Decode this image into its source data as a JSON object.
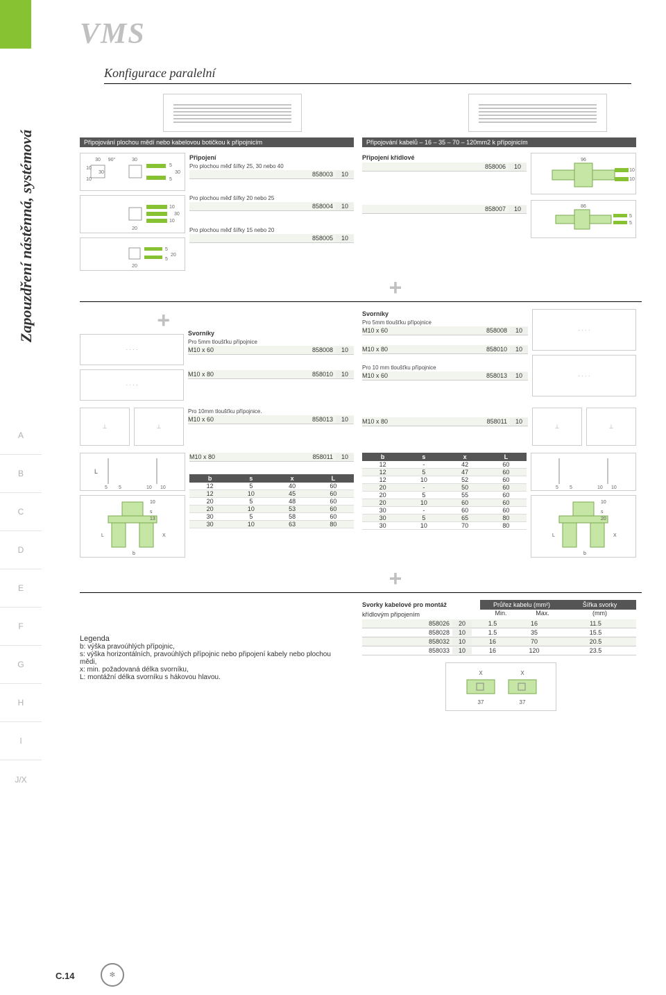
{
  "brand": {
    "title": "VMS",
    "subtitle": "Konfigurace paralelní"
  },
  "side_label": "Zapouzdření nástěnná, systémová",
  "side_tabs": [
    "A",
    "B",
    "C",
    "D",
    "E",
    "F",
    "G",
    "H",
    "I",
    "J/X"
  ],
  "page_number": "C.14",
  "colors": {
    "accent": "#86c232",
    "header_bg": "#555555",
    "tint": "#f2f5ed"
  },
  "left": {
    "banner": "Připojování plochou mědí nebo kabelovou botičkou k přípojnicím",
    "group_title": "Připojení",
    "blocks": [
      {
        "sub": "Pro plochou měď šířky 25, 30 nebo 40",
        "code": "858003",
        "qty": "10"
      },
      {
        "sub": "Pro plochou měď šířky 20 nebo 25",
        "code": "858004",
        "qty": "10"
      },
      {
        "sub": "Pro plochou měď šířky 15 nebo 20",
        "code": "858005",
        "qty": "10"
      }
    ],
    "schematic_labels": {
      "a": [
        "30",
        "90°",
        "30",
        "10",
        "30",
        "10",
        "5",
        "30",
        "5"
      ],
      "b": [
        "10",
        "30",
        "10",
        "20"
      ],
      "c": [
        "5",
        "20",
        "5",
        "20"
      ]
    }
  },
  "right": {
    "banner": "Připojování kabelů – 16 – 35 – 70 – 120mm2 k přípojnicím",
    "group_title": "Připojení křídlové",
    "rows": [
      {
        "code": "858006",
        "qty": "10"
      },
      {
        "code": "858007",
        "qty": "10"
      }
    ],
    "dim_labels": {
      "a": [
        "96",
        "10",
        "10"
      ],
      "b": [
        "86",
        "5",
        "5"
      ]
    }
  },
  "svorniky_left": {
    "title": "Svorníky",
    "sub": "Pro 5mm tloušťku přípojnice",
    "rows1": [
      {
        "name": "M10 x 60",
        "code": "858008",
        "qty": "10"
      }
    ],
    "rows2": [
      {
        "name": "M10 x 80",
        "code": "858010",
        "qty": "10"
      }
    ],
    "sub2": "Pro 10mm tloušťku přípojnice.",
    "rows3": [
      {
        "name": "M10 x 60",
        "code": "858013",
        "qty": "10"
      }
    ],
    "rows4": [
      {
        "name": "M10 x 80",
        "code": "858011",
        "qty": "10"
      }
    ]
  },
  "svorniky_right": {
    "title": "Svorníky",
    "sub": "Pro 5mm tloušťku přípojnice",
    "rows1": [
      {
        "name": "M10 x 60",
        "code": "858008",
        "qty": "10"
      }
    ],
    "rows2": [
      {
        "name": "M10 x 80",
        "code": "858010",
        "qty": "10"
      }
    ],
    "sub2": "Pro 10 mm tloušťku přípojnice",
    "rows3": [
      {
        "name": "M10 x 60",
        "code": "858013",
        "qty": "10"
      }
    ],
    "rows4": [
      {
        "name": "M10 x 80",
        "code": "858011",
        "qty": "10"
      }
    ]
  },
  "bsxl_left": {
    "columns": [
      "b",
      "s",
      "x",
      "L"
    ],
    "rows": [
      [
        "12",
        "5",
        "40",
        "60"
      ],
      [
        "12",
        "10",
        "45",
        "60"
      ],
      [
        "20",
        "5",
        "48",
        "60"
      ],
      [
        "20",
        "10",
        "53",
        "60"
      ],
      [
        "30",
        "5",
        "58",
        "60"
      ],
      [
        "30",
        "10",
        "63",
        "80"
      ]
    ]
  },
  "bsxl_right": {
    "columns": [
      "b",
      "s",
      "x",
      "L"
    ],
    "rows": [
      [
        "12",
        "-",
        "42",
        "60"
      ],
      [
        "12",
        "5",
        "47",
        "60"
      ],
      [
        "12",
        "10",
        "52",
        "60"
      ],
      [
        "20",
        "-",
        "50",
        "60"
      ],
      [
        "20",
        "5",
        "55",
        "60"
      ],
      [
        "20",
        "10",
        "60",
        "60"
      ],
      [
        "30",
        "-",
        "60",
        "60"
      ],
      [
        "30",
        "5",
        "65",
        "80"
      ],
      [
        "30",
        "10",
        "70",
        "80"
      ]
    ]
  },
  "clamps": {
    "title1": "Svorky kabelové pro montáž",
    "title2": "křídlovým připojením",
    "col_area": "Průřez kabelu (mm²)",
    "col_min": "Min.",
    "col_max": "Max.",
    "col_width": "Šířka svorky",
    "col_width_unit": "(mm)",
    "rows": [
      {
        "code": "858026",
        "qty": "20",
        "min": "1.5",
        "max": "16",
        "w": "11.5"
      },
      {
        "code": "858028",
        "qty": "10",
        "min": "1.5",
        "max": "35",
        "w": "15.5"
      },
      {
        "code": "858032",
        "qty": "10",
        "min": "16",
        "max": "70",
        "w": "20.5"
      },
      {
        "code": "858033",
        "qty": "10",
        "min": "16",
        "max": "120",
        "w": "23.5"
      }
    ],
    "dim_labels": [
      "X",
      "X",
      "37",
      "37"
    ]
  },
  "legend": {
    "title": "Legenda",
    "lines": [
      "b: výška pravoúhlých přípojnic,",
      "s: výška horizontálních, pravoúhlých přípojnic nebo připojení kabely nebo plochou mědi,",
      "x: min. požadovaná délka svorníku,",
      "L: montážní délka svorníku s hákovou hlavou."
    ]
  },
  "drawing_labels": {
    "stud_left": [
      "L",
      "5",
      "5",
      "10",
      "10"
    ],
    "stud_assembly": [
      "10",
      "s",
      "13",
      "L",
      "X",
      "b"
    ],
    "stud_right": [
      "L",
      "5",
      "5",
      "10",
      "10",
      "10",
      "s",
      "20",
      "L",
      "X",
      "b"
    ]
  }
}
